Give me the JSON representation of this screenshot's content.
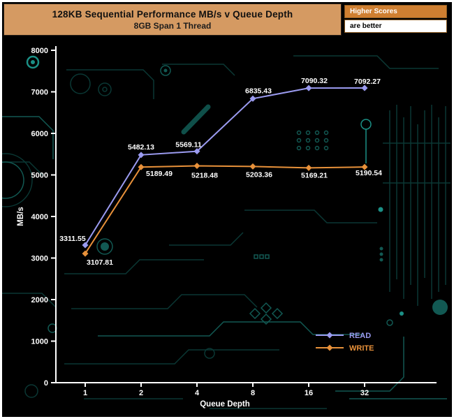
{
  "header": {
    "title": "128KB Sequential Performance MB/s v Queue Depth",
    "subtitle": "8GB Span 1 Thread",
    "badge_top": "Higher Scores",
    "badge_bottom": "are better"
  },
  "chart_data": {
    "type": "line",
    "categories": [
      "1",
      "2",
      "4",
      "8",
      "16",
      "32"
    ],
    "x": [
      1,
      2,
      4,
      8,
      16,
      32
    ],
    "series": [
      {
        "name": "READ",
        "color": "#9b9bf0",
        "values": [
          3311.55,
          5482.13,
          5569.11,
          6835.43,
          7090.32,
          7092.27
        ],
        "labels": [
          "3311.55",
          "5482.13",
          "5569.11",
          "6835.43",
          "7090.32",
          "7092.27"
        ]
      },
      {
        "name": "WRITE",
        "color": "#e8913a",
        "values": [
          3107.81,
          5189.49,
          5218.48,
          5203.36,
          5169.21,
          5190.54
        ],
        "labels": [
          "3107.81",
          "5189.49",
          "5218.48",
          "5203.36",
          "5169.21",
          "5190.54"
        ]
      }
    ],
    "title": "128KB Sequential Performance MB/s v Queue Depth",
    "subtitle": "8GB Span 1 Thread",
    "xlabel": "Queue Depth",
    "ylabel": "MB/s",
    "ylim": [
      0,
      8000
    ],
    "ytick_step": 1000,
    "yticks": [
      "0",
      "1000",
      "2000",
      "3000",
      "4000",
      "5000",
      "6000",
      "7000",
      "8000"
    ],
    "grid": false,
    "legend_position": "bottom-right",
    "marker": "diamond"
  },
  "colors": {
    "header_bg": "#d59a62",
    "badge_orange": "#cf7f31",
    "background": "#000000",
    "axis": "#ffffff",
    "data_label": "#ffffff",
    "circuit_dim": "#0c3e3a",
    "circuit_mid": "#14635c",
    "circuit_bright": "#1fa095"
  }
}
